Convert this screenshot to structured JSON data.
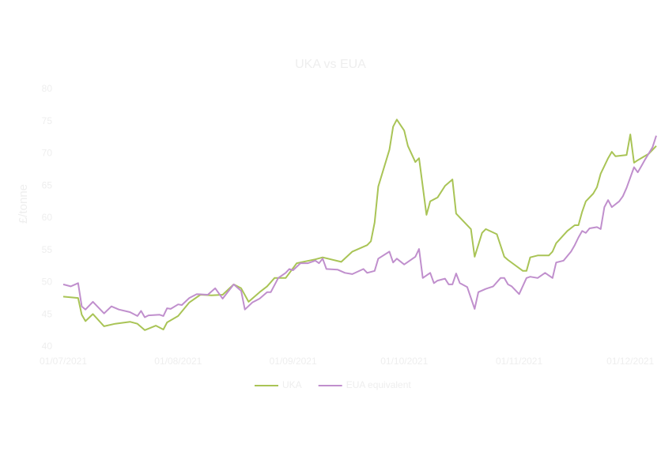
{
  "chart_data": {
    "type": "line",
    "title": "UKA vs EUA",
    "y_label": "£/tonne",
    "xlim": [
      "01/07/2021",
      "08/12/2021"
    ],
    "xticks": [
      "01/07/2021",
      "01/08/2021",
      "01/09/2021",
      "01/10/2021",
      "01/11/2021",
      "01/12/2021"
    ],
    "ylim": [
      40,
      80
    ],
    "yticks": [
      40,
      45,
      50,
      55,
      60,
      65,
      70,
      75,
      80
    ],
    "grid": false,
    "legend": "bottom",
    "series": [
      {
        "name": "UKA",
        "color": "#a9c456",
        "x": [
          "01/07/2021",
          "05/07/2021",
          "06/07/2021",
          "07/07/2021",
          "09/07/2021",
          "12/07/2021",
          "15/07/2021",
          "19/07/2021",
          "21/07/2021",
          "23/07/2021",
          "26/07/2021",
          "28/07/2021",
          "29/07/2021",
          "01/08/2021",
          "04/08/2021",
          "07/08/2021",
          "10/08/2021",
          "13/08/2021",
          "16/08/2021",
          "18/08/2021",
          "20/08/2021",
          "23/08/2021",
          "25/08/2021",
          "27/08/2021",
          "30/08/2021",
          "02/09/2021",
          "07/09/2021",
          "09/09/2021",
          "14/09/2021",
          "17/09/2021",
          "21/09/2021",
          "22/09/2021",
          "23/09/2021",
          "24/09/2021",
          "27/09/2021",
          "28/09/2021",
          "29/09/2021",
          "01/10/2021",
          "02/10/2021",
          "04/10/2021",
          "05/10/2021",
          "07/10/2021",
          "08/10/2021",
          "10/10/2021",
          "12/10/2021",
          "14/10/2021",
          "15/10/2021",
          "19/10/2021",
          "20/10/2021",
          "22/10/2021",
          "23/10/2021",
          "26/10/2021",
          "28/10/2021",
          "29/10/2021",
          "02/11/2021",
          "03/11/2021",
          "04/11/2021",
          "06/11/2021",
          "09/11/2021",
          "10/11/2021",
          "11/11/2021",
          "14/11/2021",
          "16/11/2021",
          "17/11/2021",
          "18/11/2021",
          "19/11/2021",
          "21/11/2021",
          "22/11/2021",
          "23/11/2021",
          "25/11/2021",
          "26/11/2021",
          "27/11/2021",
          "30/11/2021",
          "01/12/2021",
          "02/12/2021",
          "03/12/2021",
          "06/12/2021",
          "08/12/2021"
        ],
        "values": [
          47.8,
          47.6,
          45.0,
          44.0,
          45.1,
          43.2,
          43.6,
          43.9,
          43.6,
          42.6,
          43.3,
          42.7,
          43.8,
          44.8,
          46.9,
          48.1,
          48.0,
          48.1,
          49.7,
          49.1,
          47.0,
          48.5,
          49.4,
          50.7,
          50.7,
          53.0,
          53.6,
          53.9,
          53.2,
          54.8,
          55.8,
          56.4,
          59.3,
          64.9,
          70.6,
          74.2,
          75.3,
          73.6,
          71.2,
          68.7,
          69.3,
          60.5,
          62.6,
          63.2,
          65.0,
          66.0,
          60.7,
          58.3,
          54.0,
          57.7,
          58.3,
          57.5,
          54.0,
          53.5,
          51.8,
          51.8,
          53.9,
          54.2,
          54.2,
          54.8,
          56.1,
          58.0,
          58.9,
          58.9,
          61.0,
          62.6,
          63.8,
          64.8,
          66.9,
          69.3,
          70.3,
          69.6,
          69.8,
          73.0,
          68.6,
          69.0,
          70.0,
          71.2
        ]
      },
      {
        "name": "EUA equivalent",
        "color": "#c08fcd",
        "x": [
          "01/07/2021",
          "03/07/2021",
          "05/07/2021",
          "06/07/2021",
          "07/07/2021",
          "09/07/2021",
          "12/07/2021",
          "14/07/2021",
          "16/07/2021",
          "19/07/2021",
          "21/07/2021",
          "22/07/2021",
          "23/07/2021",
          "24/07/2021",
          "27/07/2021",
          "28/07/2021",
          "29/07/2021",
          "30/07/2021",
          "01/08/2021",
          "02/08/2021",
          "04/08/2021",
          "06/08/2021",
          "09/08/2021",
          "11/08/2021",
          "13/08/2021",
          "16/08/2021",
          "18/08/2021",
          "19/08/2021",
          "21/08/2021",
          "23/08/2021",
          "25/08/2021",
          "26/08/2021",
          "28/08/2021",
          "30/08/2021",
          "31/08/2021",
          "01/09/2021",
          "03/09/2021",
          "05/09/2021",
          "07/09/2021",
          "08/09/2021",
          "09/09/2021",
          "10/09/2021",
          "13/09/2021",
          "15/09/2021",
          "17/09/2021",
          "20/09/2021",
          "21/09/2021",
          "23/09/2021",
          "24/09/2021",
          "27/09/2021",
          "28/09/2021",
          "29/09/2021",
          "01/10/2021",
          "03/10/2021",
          "04/10/2021",
          "05/10/2021",
          "06/10/2021",
          "08/10/2021",
          "09/10/2021",
          "10/10/2021",
          "12/10/2021",
          "13/10/2021",
          "14/10/2021",
          "15/10/2021",
          "16/10/2021",
          "18/10/2021",
          "20/10/2021",
          "21/10/2021",
          "23/10/2021",
          "25/10/2021",
          "27/10/2021",
          "28/10/2021",
          "29/10/2021",
          "30/10/2021",
          "01/11/2021",
          "03/11/2021",
          "04/11/2021",
          "06/11/2021",
          "08/11/2021",
          "10/11/2021",
          "11/11/2021",
          "13/11/2021",
          "15/11/2021",
          "16/11/2021",
          "17/11/2021",
          "18/11/2021",
          "19/11/2021",
          "20/11/2021",
          "22/11/2021",
          "23/11/2021",
          "24/11/2021",
          "25/11/2021",
          "26/11/2021",
          "28/11/2021",
          "29/11/2021",
          "30/11/2021",
          "02/12/2021",
          "03/12/2021",
          "04/12/2021",
          "05/12/2021",
          "07/12/2021",
          "08/12/2021"
        ],
        "values": [
          49.7,
          49.4,
          49.9,
          46.3,
          45.8,
          47.0,
          45.2,
          46.3,
          45.8,
          45.4,
          44.8,
          45.6,
          44.6,
          44.9,
          45.0,
          44.8,
          46.0,
          45.9,
          46.6,
          46.5,
          47.6,
          48.2,
          48.1,
          49.1,
          47.5,
          49.7,
          48.7,
          45.8,
          46.9,
          47.5,
          48.5,
          48.5,
          50.7,
          51.5,
          52.1,
          51.9,
          53.0,
          53.0,
          53.4,
          53.0,
          53.7,
          52.1,
          52.0,
          51.5,
          51.3,
          52.1,
          51.5,
          51.8,
          53.7,
          54.8,
          53.1,
          53.7,
          52.8,
          53.6,
          54.0,
          55.2,
          50.7,
          51.5,
          49.9,
          50.3,
          50.6,
          49.7,
          49.7,
          51.4,
          49.9,
          49.3,
          45.9,
          48.5,
          49.0,
          49.4,
          50.7,
          50.7,
          49.7,
          49.4,
          48.2,
          50.7,
          50.9,
          50.7,
          51.5,
          50.7,
          53.1,
          53.4,
          54.8,
          55.8,
          57.0,
          58.0,
          57.7,
          58.4,
          58.6,
          58.3,
          61.7,
          62.8,
          61.7,
          62.6,
          63.4,
          64.7,
          67.9,
          67.1,
          68.1,
          69.1,
          71.0,
          72.8
        ]
      }
    ]
  }
}
